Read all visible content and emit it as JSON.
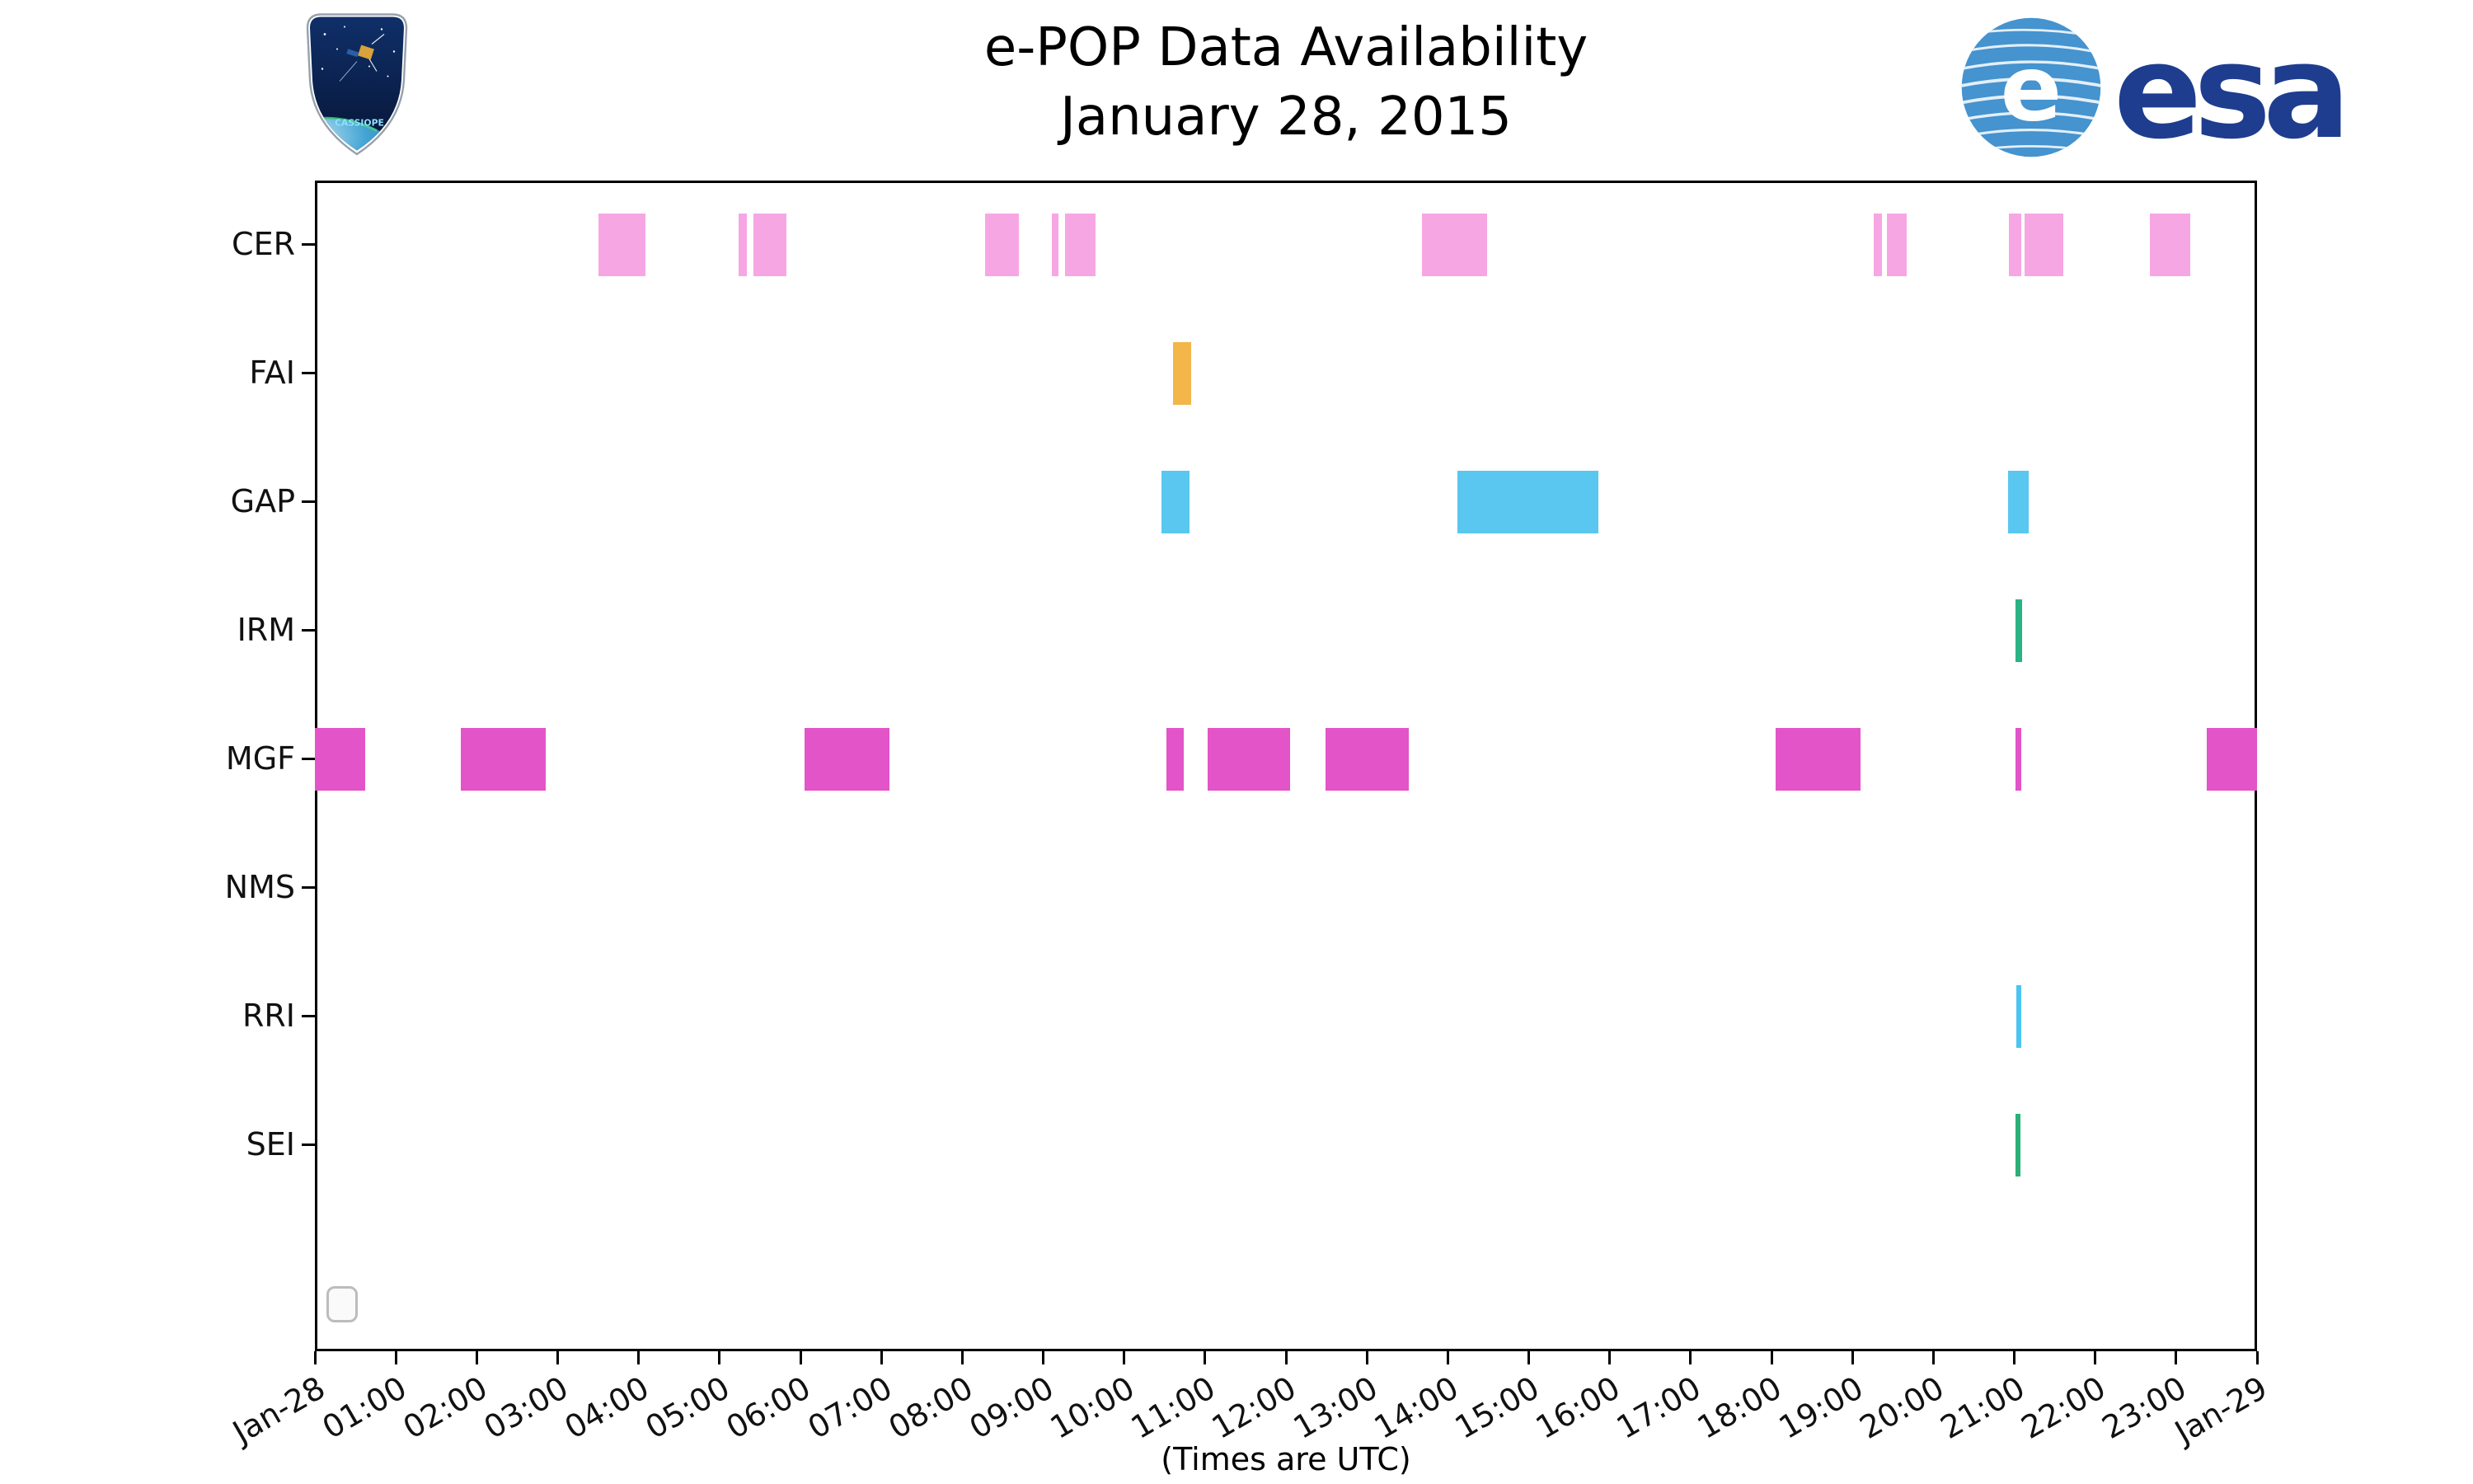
{
  "header": {
    "title": "e-POP Data Availability",
    "subtitle": "January 28, 2015"
  },
  "logos": {
    "cassiope_text": "CASSIOPE",
    "esa_emblem_letter": "e",
    "esa_wordmark": "esa"
  },
  "colors": {
    "cer": "#f7a6e4",
    "fai": "#f3b64a",
    "gap": "#59c7f0",
    "irm": "#2ab385",
    "mgf": "#e254c7",
    "rri": "#4cc4f0",
    "sei": "#2bb077",
    "esa_blue": "#1e3d8f"
  },
  "chart_data": {
    "type": "availability-timeline",
    "title": "e-POP Data Availability",
    "subtitle": "January 28, 2015",
    "xlabel": "(Times are UTC)",
    "x_axis": {
      "unit": "hours",
      "range_hours": [
        0,
        24
      ],
      "tick_interval_hours": 1,
      "tick_labels": [
        "Jan-28",
        "01:00",
        "02:00",
        "03:00",
        "04:00",
        "05:00",
        "06:00",
        "07:00",
        "08:00",
        "09:00",
        "10:00",
        "11:00",
        "12:00",
        "13:00",
        "14:00",
        "15:00",
        "16:00",
        "17:00",
        "18:00",
        "19:00",
        "20:00",
        "21:00",
        "22:00",
        "23:00",
        "Jan-29"
      ]
    },
    "y_axis": {
      "instruments": [
        "CER",
        "FAI",
        "GAP",
        "IRM",
        "MGF",
        "NMS",
        "RRI",
        "SEI"
      ]
    },
    "rows": [
      {
        "instrument": "CER",
        "color": "#f7a6e4",
        "intervals": [
          [
            3.5,
            4.09
          ],
          [
            5.24,
            5.34
          ],
          [
            5.42,
            5.83
          ],
          [
            8.28,
            8.7
          ],
          [
            9.11,
            9.19
          ],
          [
            9.27,
            9.65
          ],
          [
            13.68,
            14.49
          ],
          [
            19.26,
            19.37
          ],
          [
            19.43,
            19.67
          ],
          [
            20.93,
            21.09
          ],
          [
            21.13,
            21.61
          ],
          [
            22.68,
            23.17
          ]
        ]
      },
      {
        "instrument": "FAI",
        "color": "#f3b64a",
        "intervals": [
          [
            10.6,
            10.83
          ]
        ]
      },
      {
        "instrument": "GAP",
        "color": "#59c7f0",
        "intervals": [
          [
            10.46,
            10.81
          ],
          [
            14.12,
            15.86
          ],
          [
            20.92,
            21.18
          ]
        ]
      },
      {
        "instrument": "IRM",
        "color": "#2ab385",
        "intervals": [
          [
            21.02,
            21.1
          ]
        ]
      },
      {
        "instrument": "MGF",
        "color": "#e254c7",
        "intervals": [
          [
            0.0,
            0.62
          ],
          [
            1.8,
            2.85
          ],
          [
            6.05,
            7.1
          ],
          [
            10.52,
            10.74
          ],
          [
            11.03,
            12.05
          ],
          [
            12.49,
            13.52
          ],
          [
            18.05,
            19.1
          ],
          [
            21.02,
            21.09
          ],
          [
            23.38,
            24.0
          ]
        ]
      },
      {
        "instrument": "NMS",
        "color": "#cccccc",
        "intervals": []
      },
      {
        "instrument": "RRI",
        "color": "#4cc4f0",
        "intervals": [
          [
            21.03,
            21.07
          ]
        ]
      },
      {
        "instrument": "SEI",
        "color": "#2bb077",
        "intervals": [
          [
            21.02,
            21.08
          ]
        ]
      }
    ]
  }
}
